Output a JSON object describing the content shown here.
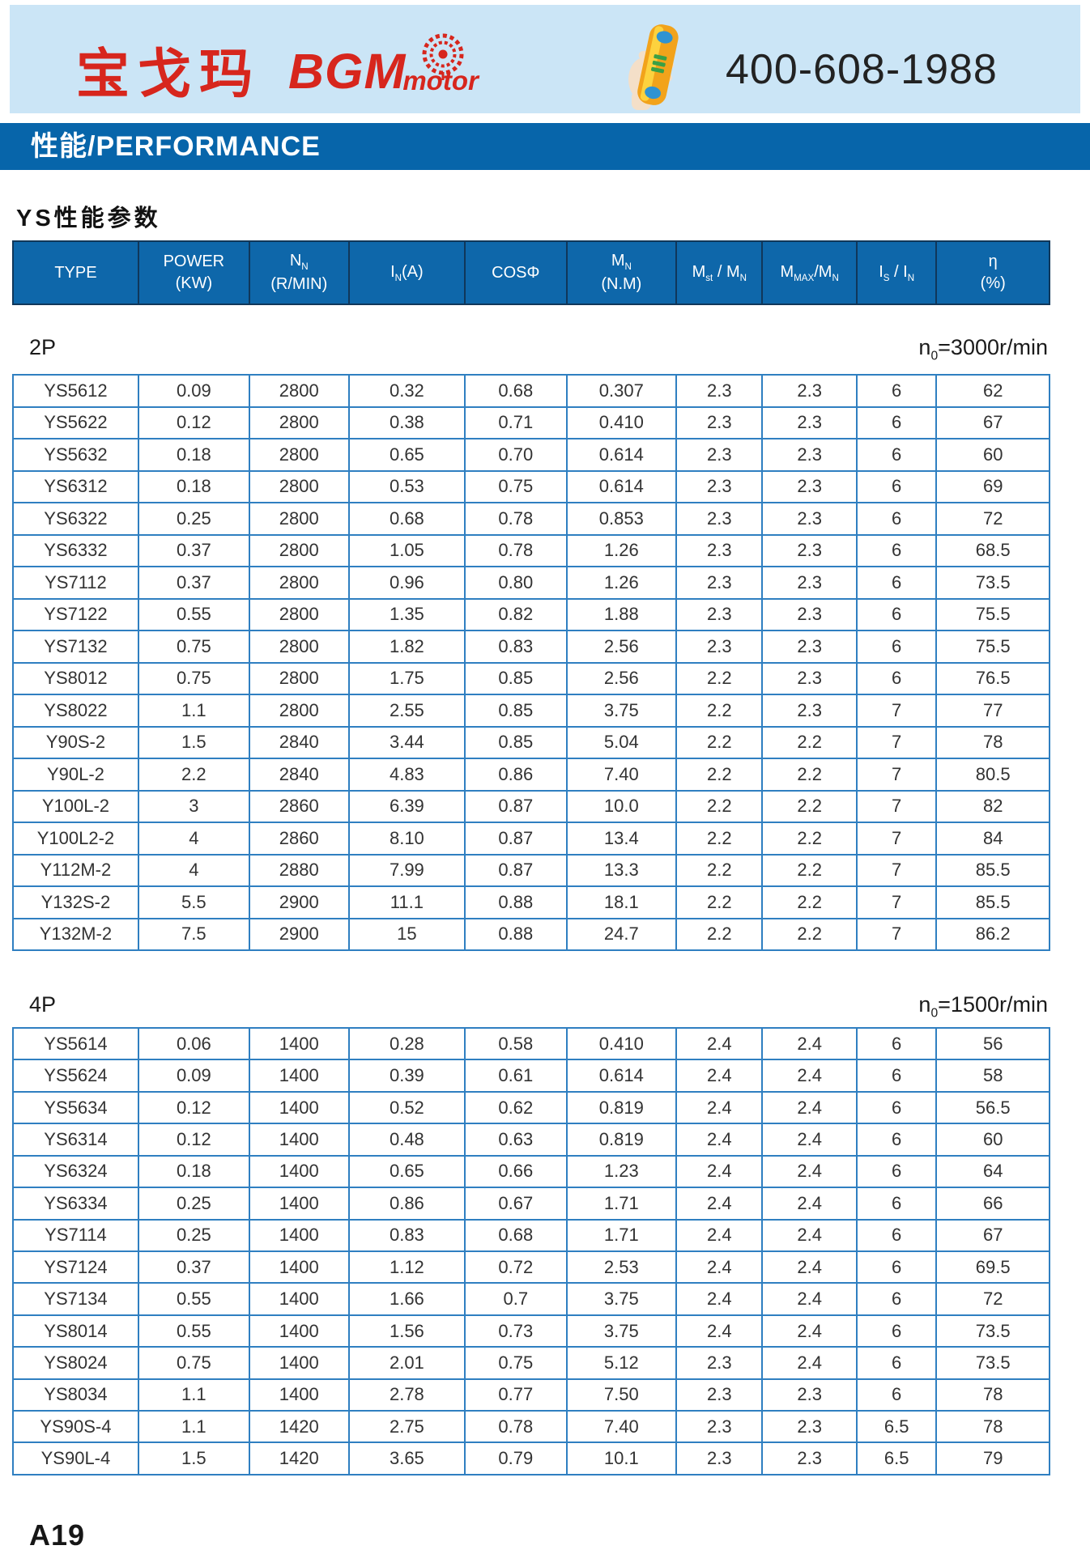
{
  "header": {
    "logo_cn": "宝戈玛",
    "logo_en_main": "BGM",
    "logo_en_sub": "motor",
    "phone": "400-608-1988",
    "icons": {
      "gear": "gear-emblem",
      "phone": "hand-holding-telephone"
    },
    "colors": {
      "band_bg": "#cbe5f6",
      "logo_red": "#d7261d",
      "banner_blue": "#0765aa",
      "table_border_blue": "#2f7fc1",
      "header_fill_blue": "#0e67aa"
    }
  },
  "banner": {
    "text": "性能/PERFORMANCE"
  },
  "section_title": "YS性能参数",
  "table": {
    "columns": [
      {
        "name": "type",
        "line1": [
          [
            "t",
            "TYPE"
          ]
        ]
      },
      {
        "name": "power-kw",
        "line1": [
          [
            "t",
            "POWER"
          ]
        ],
        "line2": [
          [
            "t",
            "(KW)"
          ]
        ]
      },
      {
        "name": "rated-speed",
        "line1": [
          [
            "t",
            "N"
          ],
          [
            "sub",
            "N"
          ]
        ],
        "line2": [
          [
            "t",
            "(R/MIN)"
          ]
        ]
      },
      {
        "name": "rated-current",
        "line1": [
          [
            "t",
            "I"
          ],
          [
            "sub",
            "N"
          ],
          [
            "t",
            "(A)"
          ]
        ]
      },
      {
        "name": "power-factor",
        "line1": [
          [
            "t",
            "COSΦ"
          ]
        ]
      },
      {
        "name": "rated-torque",
        "line1": [
          [
            "t",
            "M"
          ],
          [
            "sub",
            "N"
          ]
        ],
        "line2": [
          [
            "t",
            "(N.M)"
          ]
        ]
      },
      {
        "name": "starting-torque-ratio",
        "line1": [
          [
            "t",
            "M"
          ],
          [
            "sub",
            "st"
          ],
          [
            "t",
            " / M"
          ],
          [
            "sub",
            "N"
          ]
        ]
      },
      {
        "name": "max-torque-ratio",
        "line1": [
          [
            "t",
            "M"
          ],
          [
            "sub",
            "MAX"
          ],
          [
            "t",
            "/M"
          ],
          [
            "sub",
            "N"
          ]
        ]
      },
      {
        "name": "starting-current-ratio",
        "line1": [
          [
            "t",
            "I"
          ],
          [
            "sub",
            "S"
          ],
          [
            "t",
            " / I"
          ],
          [
            "sub",
            "N"
          ]
        ]
      },
      {
        "name": "efficiency",
        "line1": [
          [
            "t",
            "η"
          ]
        ],
        "line2": [
          [
            "t",
            "(%)"
          ]
        ]
      }
    ]
  },
  "sections": [
    {
      "label": "2P",
      "note": "n0=3000r/min",
      "note_segments": [
        [
          "t",
          "n"
        ],
        [
          "sub",
          "0"
        ],
        [
          "t",
          "=3000r/min"
        ]
      ],
      "rows": [
        [
          "YS5612",
          "0.09",
          "2800",
          "0.32",
          "0.68",
          "0.307",
          "2.3",
          "2.3",
          "6",
          "62"
        ],
        [
          "YS5622",
          "0.12",
          "2800",
          "0.38",
          "0.71",
          "0.410",
          "2.3",
          "2.3",
          "6",
          "67"
        ],
        [
          "YS5632",
          "0.18",
          "2800",
          "0.65",
          "0.70",
          "0.614",
          "2.3",
          "2.3",
          "6",
          "60"
        ],
        [
          "YS6312",
          "0.18",
          "2800",
          "0.53",
          "0.75",
          "0.614",
          "2.3",
          "2.3",
          "6",
          "69"
        ],
        [
          "YS6322",
          "0.25",
          "2800",
          "0.68",
          "0.78",
          "0.853",
          "2.3",
          "2.3",
          "6",
          "72"
        ],
        [
          "YS6332",
          "0.37",
          "2800",
          "1.05",
          "0.78",
          "1.26",
          "2.3",
          "2.3",
          "6",
          "68.5"
        ],
        [
          "YS7112",
          "0.37",
          "2800",
          "0.96",
          "0.80",
          "1.26",
          "2.3",
          "2.3",
          "6",
          "73.5"
        ],
        [
          "YS7122",
          "0.55",
          "2800",
          "1.35",
          "0.82",
          "1.88",
          "2.3",
          "2.3",
          "6",
          "75.5"
        ],
        [
          "YS7132",
          "0.75",
          "2800",
          "1.82",
          "0.83",
          "2.56",
          "2.3",
          "2.3",
          "6",
          "75.5"
        ],
        [
          "YS8012",
          "0.75",
          "2800",
          "1.75",
          "0.85",
          "2.56",
          "2.2",
          "2.3",
          "6",
          "76.5"
        ],
        [
          "YS8022",
          "1.1",
          "2800",
          "2.55",
          "0.85",
          "3.75",
          "2.2",
          "2.3",
          "7",
          "77"
        ],
        [
          "Y90S-2",
          "1.5",
          "2840",
          "3.44",
          "0.85",
          "5.04",
          "2.2",
          "2.2",
          "7",
          "78"
        ],
        [
          "Y90L-2",
          "2.2",
          "2840",
          "4.83",
          "0.86",
          "7.40",
          "2.2",
          "2.2",
          "7",
          "80.5"
        ],
        [
          "Y100L-2",
          "3",
          "2860",
          "6.39",
          "0.87",
          "10.0",
          "2.2",
          "2.2",
          "7",
          "82"
        ],
        [
          "Y100L2-2",
          "4",
          "2860",
          "8.10",
          "0.87",
          "13.4",
          "2.2",
          "2.2",
          "7",
          "84"
        ],
        [
          "Y112M-2",
          "4",
          "2880",
          "7.99",
          "0.87",
          "13.3",
          "2.2",
          "2.2",
          "7",
          "85.5"
        ],
        [
          "Y132S-2",
          "5.5",
          "2900",
          "11.1",
          "0.88",
          "18.1",
          "2.2",
          "2.2",
          "7",
          "85.5"
        ],
        [
          "Y132M-2",
          "7.5",
          "2900",
          "15",
          "0.88",
          "24.7",
          "2.2",
          "2.2",
          "7",
          "86.2"
        ]
      ]
    },
    {
      "label": "4P",
      "note": "n0=1500r/min",
      "note_segments": [
        [
          "t",
          "n"
        ],
        [
          "sub",
          "0"
        ],
        [
          "t",
          "=1500r/min"
        ]
      ],
      "rows": [
        [
          "YS5614",
          "0.06",
          "1400",
          "0.28",
          "0.58",
          "0.410",
          "2.4",
          "2.4",
          "6",
          "56"
        ],
        [
          "YS5624",
          "0.09",
          "1400",
          "0.39",
          "0.61",
          "0.614",
          "2.4",
          "2.4",
          "6",
          "58"
        ],
        [
          "YS5634",
          "0.12",
          "1400",
          "0.52",
          "0.62",
          "0.819",
          "2.4",
          "2.4",
          "6",
          "56.5"
        ],
        [
          "YS6314",
          "0.12",
          "1400",
          "0.48",
          "0.63",
          "0.819",
          "2.4",
          "2.4",
          "6",
          "60"
        ],
        [
          "YS6324",
          "0.18",
          "1400",
          "0.65",
          "0.66",
          "1.23",
          "2.4",
          "2.4",
          "6",
          "64"
        ],
        [
          "YS6334",
          "0.25",
          "1400",
          "0.86",
          "0.67",
          "1.71",
          "2.4",
          "2.4",
          "6",
          "66"
        ],
        [
          "YS7114",
          "0.25",
          "1400",
          "0.83",
          "0.68",
          "1.71",
          "2.4",
          "2.4",
          "6",
          "67"
        ],
        [
          "YS7124",
          "0.37",
          "1400",
          "1.12",
          "0.72",
          "2.53",
          "2.4",
          "2.4",
          "6",
          "69.5"
        ],
        [
          "YS7134",
          "0.55",
          "1400",
          "1.66",
          "0.7",
          "3.75",
          "2.4",
          "2.4",
          "6",
          "72"
        ],
        [
          "YS8014",
          "0.55",
          "1400",
          "1.56",
          "0.73",
          "3.75",
          "2.4",
          "2.4",
          "6",
          "73.5"
        ],
        [
          "YS8024",
          "0.75",
          "1400",
          "2.01",
          "0.75",
          "5.12",
          "2.3",
          "2.4",
          "6",
          "73.5"
        ],
        [
          "YS8034",
          "1.1",
          "1400",
          "2.78",
          "0.77",
          "7.50",
          "2.3",
          "2.3",
          "6",
          "78"
        ],
        [
          "YS90S-4",
          "1.1",
          "1420",
          "2.75",
          "0.78",
          "7.40",
          "2.3",
          "2.3",
          "6.5",
          "78"
        ],
        [
          "YS90L-4",
          "1.5",
          "1420",
          "3.65",
          "0.79",
          "10.1",
          "2.3",
          "2.3",
          "6.5",
          "79"
        ]
      ]
    }
  ],
  "footer": {
    "page_number": "A19"
  }
}
